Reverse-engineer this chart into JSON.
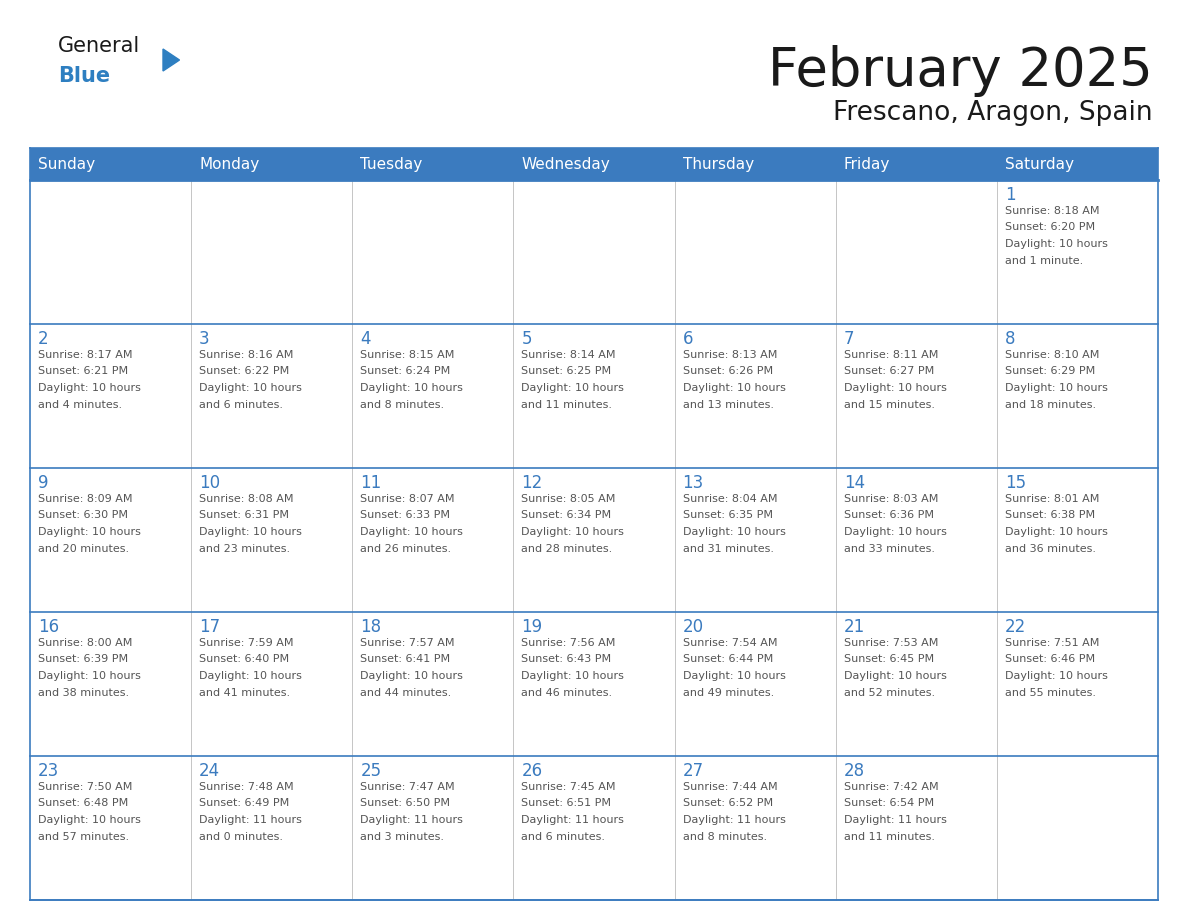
{
  "title": "February 2025",
  "subtitle": "Frescano, Aragon, Spain",
  "header_bg_color": "#3b7bbf",
  "header_text_color": "#ffffff",
  "cell_bg_color": "#ffffff",
  "cell_border_color": "#3b7bbf",
  "day_number_color": "#3b7bbf",
  "cell_text_color": "#555555",
  "background_color": "#ffffff",
  "days_of_week": [
    "Sunday",
    "Monday",
    "Tuesday",
    "Wednesday",
    "Thursday",
    "Friday",
    "Saturday"
  ],
  "logo_general_color": "#1a1a1a",
  "logo_blue_color": "#2e7fc1",
  "logo_triangle_color": "#2e7fc1",
  "title_color": "#1a1a1a",
  "subtitle_color": "#1a1a1a",
  "weeks": [
    [
      {
        "day": "",
        "info": ""
      },
      {
        "day": "",
        "info": ""
      },
      {
        "day": "",
        "info": ""
      },
      {
        "day": "",
        "info": ""
      },
      {
        "day": "",
        "info": ""
      },
      {
        "day": "",
        "info": ""
      },
      {
        "day": "1",
        "info": "Sunrise: 8:18 AM\nSunset: 6:20 PM\nDaylight: 10 hours\nand 1 minute."
      }
    ],
    [
      {
        "day": "2",
        "info": "Sunrise: 8:17 AM\nSunset: 6:21 PM\nDaylight: 10 hours\nand 4 minutes."
      },
      {
        "day": "3",
        "info": "Sunrise: 8:16 AM\nSunset: 6:22 PM\nDaylight: 10 hours\nand 6 minutes."
      },
      {
        "day": "4",
        "info": "Sunrise: 8:15 AM\nSunset: 6:24 PM\nDaylight: 10 hours\nand 8 minutes."
      },
      {
        "day": "5",
        "info": "Sunrise: 8:14 AM\nSunset: 6:25 PM\nDaylight: 10 hours\nand 11 minutes."
      },
      {
        "day": "6",
        "info": "Sunrise: 8:13 AM\nSunset: 6:26 PM\nDaylight: 10 hours\nand 13 minutes."
      },
      {
        "day": "7",
        "info": "Sunrise: 8:11 AM\nSunset: 6:27 PM\nDaylight: 10 hours\nand 15 minutes."
      },
      {
        "day": "8",
        "info": "Sunrise: 8:10 AM\nSunset: 6:29 PM\nDaylight: 10 hours\nand 18 minutes."
      }
    ],
    [
      {
        "day": "9",
        "info": "Sunrise: 8:09 AM\nSunset: 6:30 PM\nDaylight: 10 hours\nand 20 minutes."
      },
      {
        "day": "10",
        "info": "Sunrise: 8:08 AM\nSunset: 6:31 PM\nDaylight: 10 hours\nand 23 minutes."
      },
      {
        "day": "11",
        "info": "Sunrise: 8:07 AM\nSunset: 6:33 PM\nDaylight: 10 hours\nand 26 minutes."
      },
      {
        "day": "12",
        "info": "Sunrise: 8:05 AM\nSunset: 6:34 PM\nDaylight: 10 hours\nand 28 minutes."
      },
      {
        "day": "13",
        "info": "Sunrise: 8:04 AM\nSunset: 6:35 PM\nDaylight: 10 hours\nand 31 minutes."
      },
      {
        "day": "14",
        "info": "Sunrise: 8:03 AM\nSunset: 6:36 PM\nDaylight: 10 hours\nand 33 minutes."
      },
      {
        "day": "15",
        "info": "Sunrise: 8:01 AM\nSunset: 6:38 PM\nDaylight: 10 hours\nand 36 minutes."
      }
    ],
    [
      {
        "day": "16",
        "info": "Sunrise: 8:00 AM\nSunset: 6:39 PM\nDaylight: 10 hours\nand 38 minutes."
      },
      {
        "day": "17",
        "info": "Sunrise: 7:59 AM\nSunset: 6:40 PM\nDaylight: 10 hours\nand 41 minutes."
      },
      {
        "day": "18",
        "info": "Sunrise: 7:57 AM\nSunset: 6:41 PM\nDaylight: 10 hours\nand 44 minutes."
      },
      {
        "day": "19",
        "info": "Sunrise: 7:56 AM\nSunset: 6:43 PM\nDaylight: 10 hours\nand 46 minutes."
      },
      {
        "day": "20",
        "info": "Sunrise: 7:54 AM\nSunset: 6:44 PM\nDaylight: 10 hours\nand 49 minutes."
      },
      {
        "day": "21",
        "info": "Sunrise: 7:53 AM\nSunset: 6:45 PM\nDaylight: 10 hours\nand 52 minutes."
      },
      {
        "day": "22",
        "info": "Sunrise: 7:51 AM\nSunset: 6:46 PM\nDaylight: 10 hours\nand 55 minutes."
      }
    ],
    [
      {
        "day": "23",
        "info": "Sunrise: 7:50 AM\nSunset: 6:48 PM\nDaylight: 10 hours\nand 57 minutes."
      },
      {
        "day": "24",
        "info": "Sunrise: 7:48 AM\nSunset: 6:49 PM\nDaylight: 11 hours\nand 0 minutes."
      },
      {
        "day": "25",
        "info": "Sunrise: 7:47 AM\nSunset: 6:50 PM\nDaylight: 11 hours\nand 3 minutes."
      },
      {
        "day": "26",
        "info": "Sunrise: 7:45 AM\nSunset: 6:51 PM\nDaylight: 11 hours\nand 6 minutes."
      },
      {
        "day": "27",
        "info": "Sunrise: 7:44 AM\nSunset: 6:52 PM\nDaylight: 11 hours\nand 8 minutes."
      },
      {
        "day": "28",
        "info": "Sunrise: 7:42 AM\nSunset: 6:54 PM\nDaylight: 11 hours\nand 11 minutes."
      },
      {
        "day": "",
        "info": ""
      }
    ]
  ]
}
